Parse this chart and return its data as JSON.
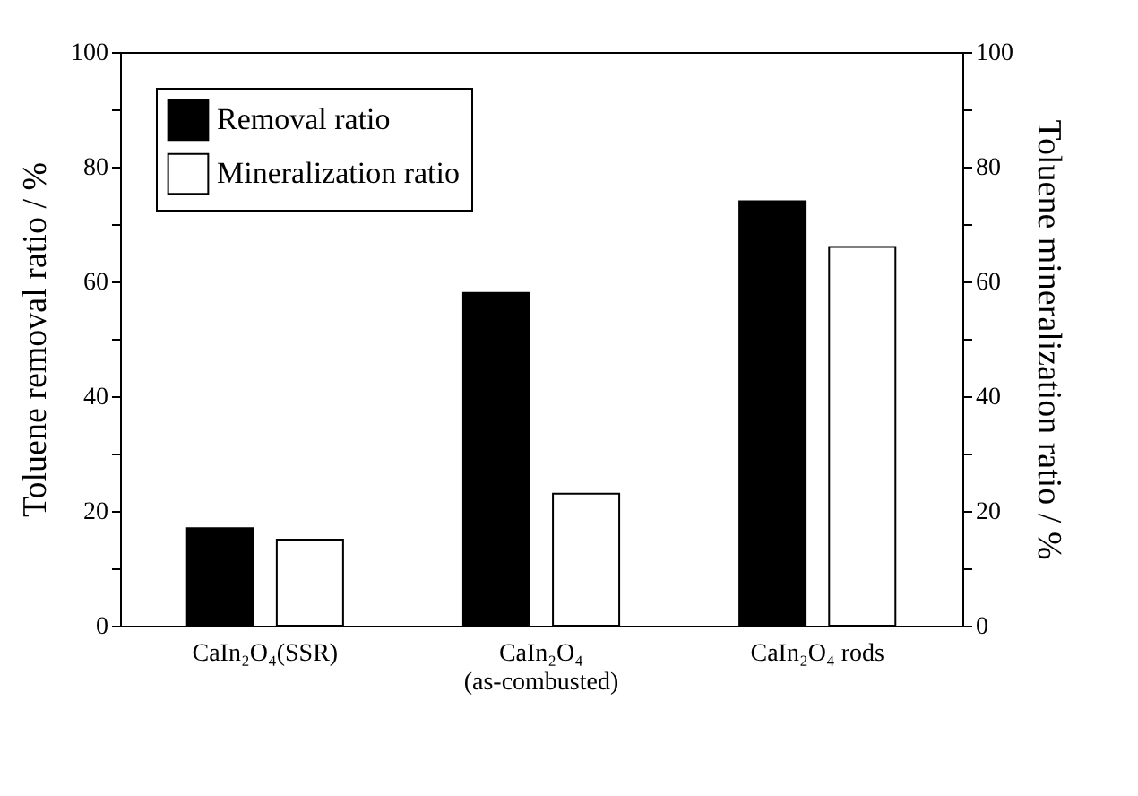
{
  "chart_data": {
    "type": "bar",
    "categories": [
      "CaIn₂O₄(SSR)",
      "CaIn₂O₄\n(as-combusted)",
      "CaIn₂O₄ rods"
    ],
    "series": [
      {
        "name": "Removal ratio",
        "color": "#000000",
        "values": [
          17,
          58,
          74
        ]
      },
      {
        "name": "Mineralization ratio",
        "color": "#ffffff",
        "values": [
          15,
          23,
          66
        ],
        "axis": "y2"
      }
    ],
    "ylabel": "Toluene removal ratio / %",
    "y2label": "Toluene mineralization ratio / %",
    "ylim": [
      0,
      100
    ],
    "yticks": [
      0,
      {
        "value": 10,
        "label": null
      },
      20,
      {
        "value": 30,
        "label": null
      },
      40,
      {
        "value": 50,
        "label": null
      },
      60,
      {
        "value": 70,
        "label": null
      },
      80,
      {
        "value": 90,
        "label": null
      },
      100
    ],
    "y2lim": [
      0,
      100
    ],
    "y2ticks": [
      0,
      {
        "value": 10,
        "label": null
      },
      20,
      {
        "value": 30,
        "label": null
      },
      40,
      {
        "value": 50,
        "label": null
      },
      60,
      {
        "value": 70,
        "label": null
      },
      80,
      {
        "value": 90,
        "label": null
      },
      100
    ],
    "grid": false,
    "legend": "top left"
  }
}
